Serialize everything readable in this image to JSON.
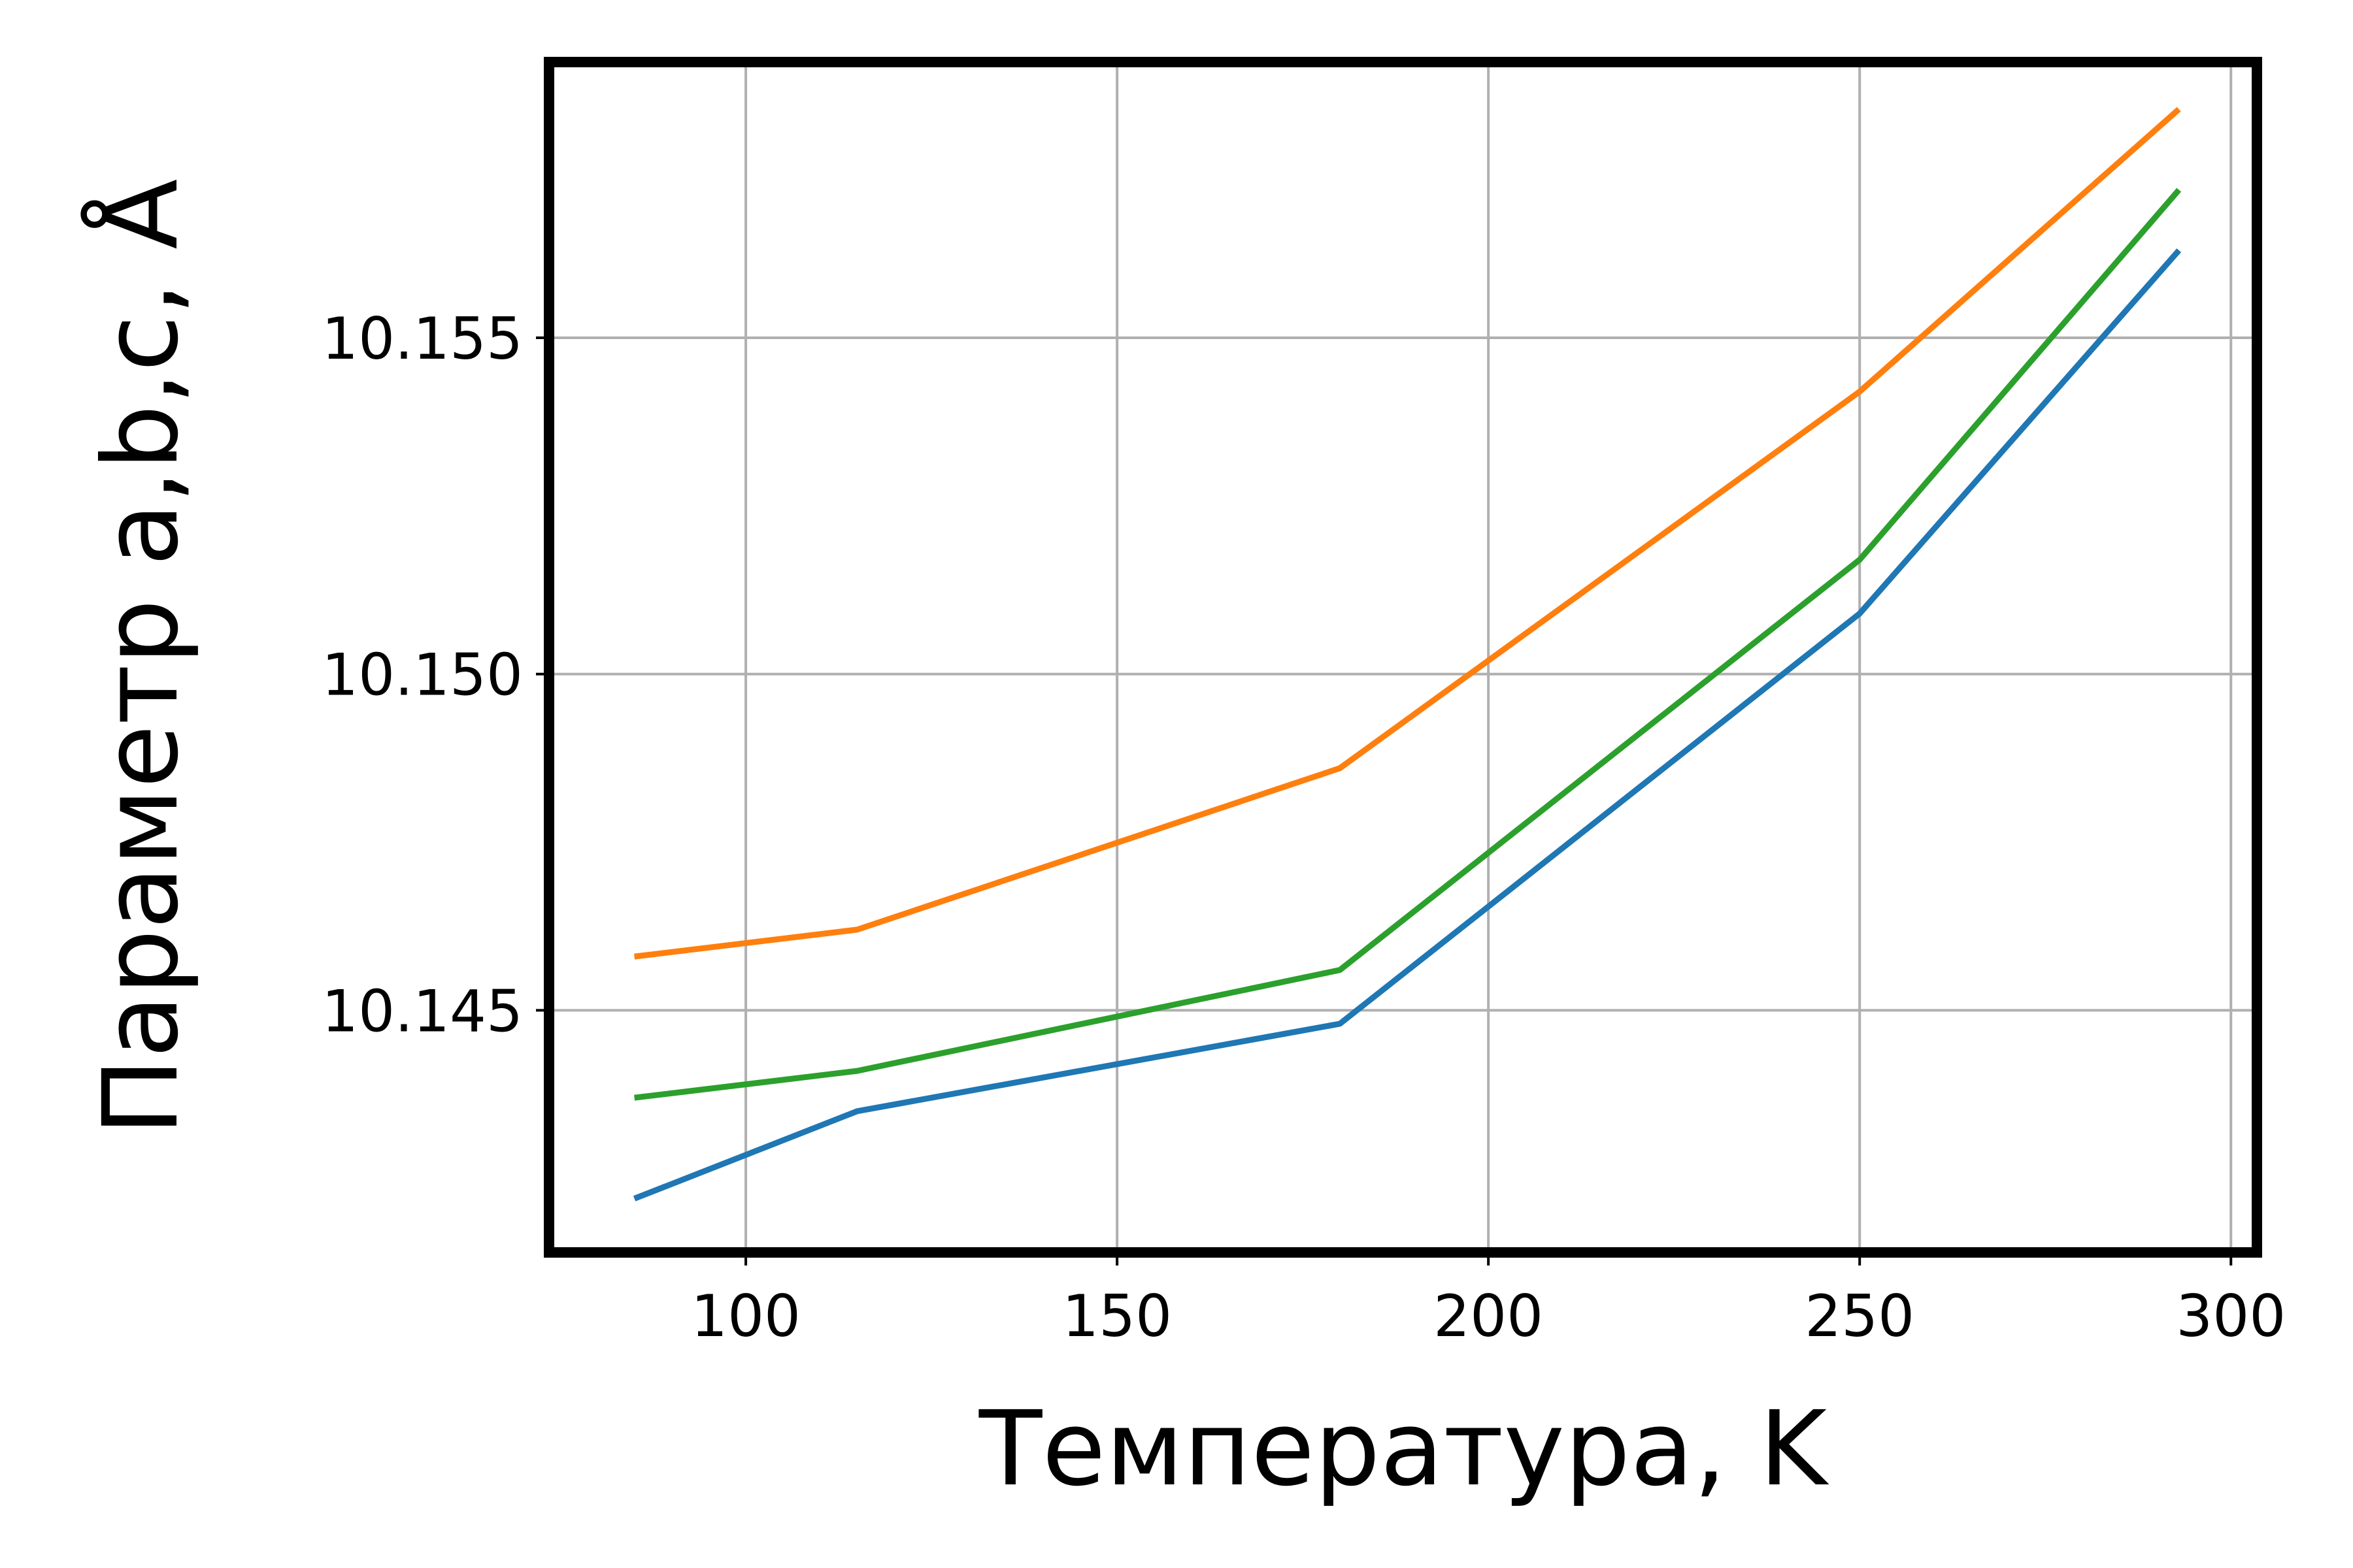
{
  "chart_data": {
    "type": "line",
    "title": "",
    "xlabel": "Температура, K",
    "ylabel": "Параметр a,b,c, Å",
    "xlim": [
      73.5,
      303.5
    ],
    "ylim": [
      10.1414,
      10.1591
    ],
    "grid": true,
    "xticks": [
      100,
      150,
      200,
      250,
      300
    ],
    "xtick_labels": [
      "100",
      "150",
      "200",
      "250",
      "300"
    ],
    "yticks": [
      10.145,
      10.15,
      10.155
    ],
    "ytick_labels": [
      "10.145",
      "10.150",
      "10.155"
    ],
    "x": [
      85,
      115,
      180,
      250,
      293
    ],
    "series": [
      {
        "color": "#1f77b4",
        "values": [
          10.1422,
          10.1435,
          10.1448,
          10.1509,
          10.1563
        ]
      },
      {
        "color": "#ff7f0e",
        "values": [
          10.1458,
          10.1462,
          10.1486,
          10.1542,
          10.1584
        ]
      },
      {
        "color": "#2ca02c",
        "values": [
          10.1437,
          10.1441,
          10.1456,
          10.1517,
          10.1572
        ]
      }
    ]
  }
}
